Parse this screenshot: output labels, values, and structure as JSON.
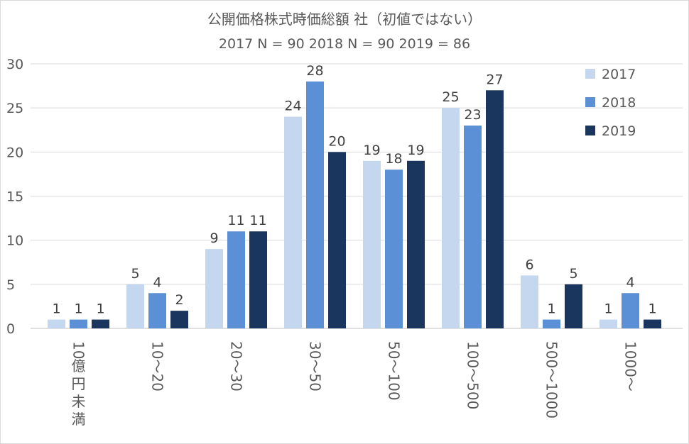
{
  "chart_data": {
    "type": "bar",
    "title": "公開価格株式時価総額 社（初値ではない）",
    "subtitle": "2017 N = 90    2018 N = 90    2019 = 86",
    "xlabel": "",
    "ylabel": "",
    "ylim": [
      0,
      30
    ],
    "yticks": [
      0,
      5,
      10,
      15,
      20,
      25,
      30
    ],
    "categories": [
      "10億円未満",
      "10～20",
      "20～30",
      "30～50",
      "50～100",
      "100～500",
      "500～1000",
      "1000～"
    ],
    "series": [
      {
        "name": "2017",
        "color": "#c5d7ef",
        "values": [
          1,
          5,
          9,
          24,
          19,
          25,
          6,
          1
        ]
      },
      {
        "name": "2018",
        "color": "#5b8fd6",
        "values": [
          1,
          4,
          11,
          28,
          18,
          23,
          1,
          4
        ]
      },
      {
        "name": "2019",
        "color": "#1a355e",
        "values": [
          1,
          2,
          11,
          20,
          19,
          27,
          5,
          1
        ]
      }
    ],
    "grid": true,
    "legend_position": "top-right"
  }
}
